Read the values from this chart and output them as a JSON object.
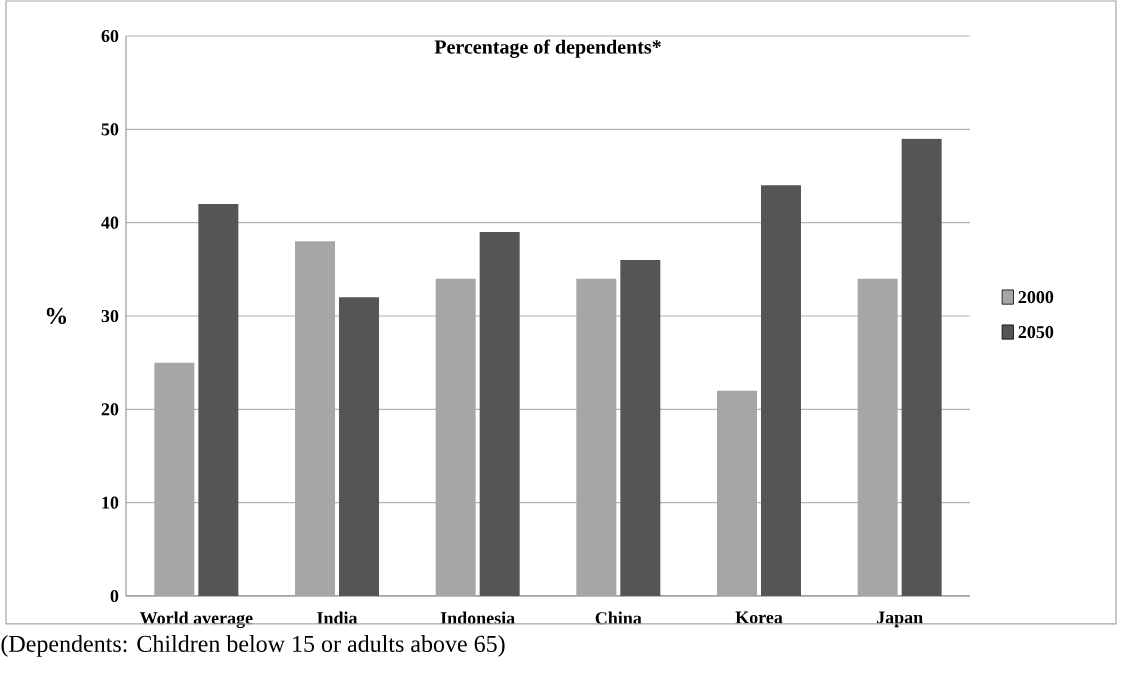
{
  "chart_data": {
    "type": "bar",
    "title": "Percentage of dependents*",
    "ylabel": "%",
    "categories": [
      "World average",
      "India",
      "Indonesia",
      "China",
      "Korea",
      "Japan"
    ],
    "series": [
      {
        "name": "2000",
        "color": "#a6a6a6",
        "values": [
          25,
          38,
          34,
          34,
          22,
          34
        ]
      },
      {
        "name": "2050",
        "color": "#555555",
        "values": [
          42,
          32,
          39,
          36,
          44,
          49
        ]
      }
    ],
    "ylim": [
      0,
      60
    ],
    "yticks": [
      0,
      10,
      20,
      30,
      40,
      50,
      60
    ],
    "grid": "y",
    "legend": "right",
    "annotations": [
      "(Dependents: Children below 15 or adults above 65)"
    ]
  }
}
